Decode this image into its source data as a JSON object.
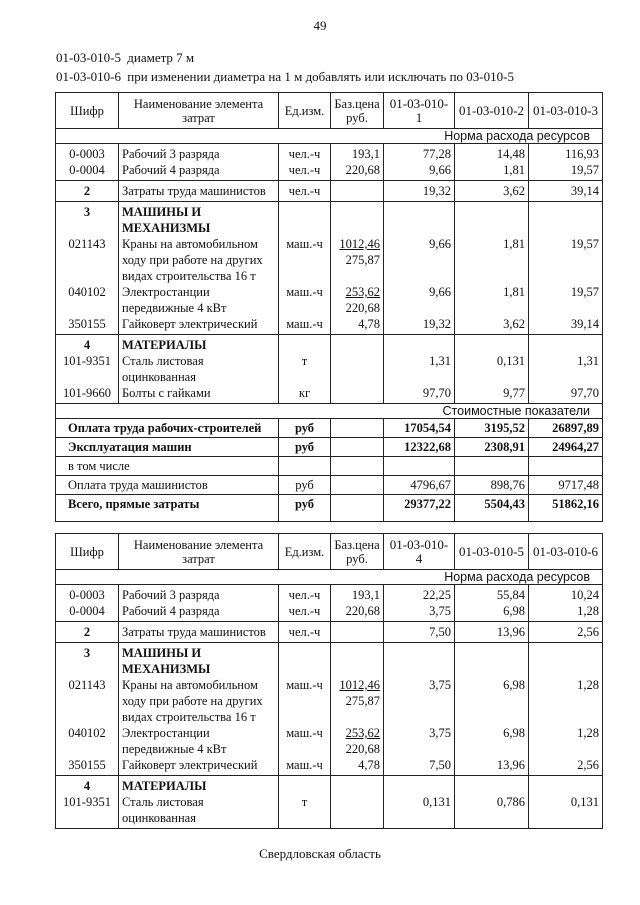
{
  "page_number": "49",
  "intro": [
    {
      "code": "01-03-010-5",
      "text": "диаметр 7 м"
    },
    {
      "code": "01-03-010-6",
      "text": "при изменении диаметра на 1 м добавлять или исключать по 03-010-5"
    }
  ],
  "headers": {
    "code": "Шифр",
    "name": "Наименование элемента затрат",
    "unit": "Ед.изм.",
    "price": "Баз.цена руб."
  },
  "norm_label": "Норма расхода ресурсов",
  "cost_label": "Стоимостные показатели",
  "tables": [
    {
      "columns": [
        "01-03-010-1",
        "01-03-010-2",
        "01-03-010-3"
      ],
      "groups": [
        {
          "rows": [
            {
              "code": "0-0003",
              "name": [
                "Рабочий 3 разряда"
              ],
              "unit": "чел.-ч",
              "price": [
                "193,1"
              ],
              "values": [
                "77,28",
                "14,48",
                "116,93"
              ]
            },
            {
              "code": "0-0004",
              "name": [
                "Рабочий 4 разряда"
              ],
              "unit": "чел.-ч",
              "price": [
                "220,68"
              ],
              "values": [
                "9,66",
                "1,81",
                "19,57"
              ]
            }
          ]
        },
        {
          "rows": [
            {
              "code": "2",
              "bold_code": true,
              "name": [
                "Затраты труда машинистов"
              ],
              "unit": "чел.-ч",
              "price": [],
              "values": [
                "19,32",
                "3,62",
                "39,14"
              ]
            }
          ]
        },
        {
          "rows": [
            {
              "code": "3",
              "bold_code": true,
              "bold_name": true,
              "name": [
                "МАШИНЫ И",
                "МЕХАНИЗМЫ"
              ],
              "unit": "",
              "price": [],
              "values": [
                "",
                "",
                ""
              ]
            },
            {
              "code": "021143",
              "name": [
                "Краны на автомобильном",
                "ходу при работе на других",
                "видах строительства 16 т"
              ],
              "unit": "маш.-ч",
              "price": [
                "1012,46",
                "275,87"
              ],
              "underline_first": true,
              "values": [
                "9,66",
                "1,81",
                "19,57"
              ]
            },
            {
              "code": "040102",
              "name": [
                "Электростанции",
                "передвижные 4 кВт"
              ],
              "unit": "маш.-ч",
              "price": [
                "253,62",
                "220,68"
              ],
              "underline_first": true,
              "values": [
                "9,66",
                "1,81",
                "19,57"
              ]
            },
            {
              "code": "350155",
              "name": [
                "Гайковерт электрический"
              ],
              "unit": "маш.-ч",
              "price": [
                "4,78"
              ],
              "values": [
                "19,32",
                "3,62",
                "39,14"
              ]
            }
          ]
        },
        {
          "rows": [
            {
              "code": "4",
              "bold_code": true,
              "bold_name": true,
              "name": [
                "МАТЕРИАЛЫ"
              ],
              "unit": "",
              "price": [],
              "values": [
                "",
                "",
                ""
              ]
            },
            {
              "code": "101-9351",
              "name": [
                "Сталь листовая",
                "оцинкованная"
              ],
              "unit": "т",
              "price": [],
              "values": [
                "1,31",
                "0,131",
                "1,31"
              ]
            },
            {
              "code": "101-9660",
              "name": [
                "Болты с гайками"
              ],
              "unit": "кг",
              "price": [],
              "values": [
                "97,70",
                "9,77",
                "97,70"
              ]
            }
          ]
        }
      ],
      "costs": [
        {
          "label": "Оплата труда рабочих-строителей",
          "bold": true,
          "unit": "руб",
          "values": [
            "17054,54",
            "3195,52",
            "26897,89"
          ]
        },
        {
          "label": "Эксплуатация машин",
          "bold": true,
          "unit": "руб",
          "values": [
            "12322,68",
            "2308,91",
            "24964,27"
          ]
        },
        {
          "label": "в том числе",
          "bold": false,
          "unit": "",
          "values": [
            "",
            "",
            ""
          ]
        },
        {
          "label": "Оплата труда машинистов",
          "bold": false,
          "unit": "руб",
          "values": [
            "4796,67",
            "898,76",
            "9717,48"
          ]
        },
        {
          "label": "Всего, прямые затраты",
          "bold": true,
          "unit": "руб",
          "values": [
            "29377,22",
            "5504,43",
            "51862,16"
          ]
        }
      ]
    },
    {
      "columns": [
        "01-03-010-4",
        "01-03-010-5",
        "01-03-010-6"
      ],
      "groups": [
        {
          "rows": [
            {
              "code": "0-0003",
              "name": [
                "Рабочий 3 разряда"
              ],
              "unit": "чел.-ч",
              "price": [
                "193,1"
              ],
              "values": [
                "22,25",
                "55,84",
                "10,24"
              ]
            },
            {
              "code": "0-0004",
              "name": [
                "Рабочий 4 разряда"
              ],
              "unit": "чел.-ч",
              "price": [
                "220,68"
              ],
              "values": [
                "3,75",
                "6,98",
                "1,28"
              ]
            }
          ]
        },
        {
          "rows": [
            {
              "code": "2",
              "bold_code": true,
              "name": [
                "Затраты труда машинистов"
              ],
              "unit": "чел.-ч",
              "price": [],
              "values": [
                "7,50",
                "13,96",
                "2,56"
              ]
            }
          ]
        },
        {
          "rows": [
            {
              "code": "3",
              "bold_code": true,
              "bold_name": true,
              "name": [
                "МАШИНЫ И",
                "МЕХАНИЗМЫ"
              ],
              "unit": "",
              "price": [],
              "values": [
                "",
                "",
                ""
              ]
            },
            {
              "code": "021143",
              "name": [
                "Краны на автомобильном",
                "ходу при работе на других",
                "видах строительства 16 т"
              ],
              "unit": "маш.-ч",
              "price": [
                "1012,46",
                "275,87"
              ],
              "underline_first": true,
              "values": [
                "3,75",
                "6,98",
                "1,28"
              ]
            },
            {
              "code": "040102",
              "name": [
                "Электростанции",
                "передвижные 4 кВт"
              ],
              "unit": "маш.-ч",
              "price": [
                "253,62",
                "220,68"
              ],
              "underline_first": true,
              "values": [
                "3,75",
                "6,98",
                "1,28"
              ]
            },
            {
              "code": "350155",
              "name": [
                "Гайковерт электрический"
              ],
              "unit": "маш.-ч",
              "price": [
                "4,78"
              ],
              "values": [
                "7,50",
                "13,96",
                "2,56"
              ]
            }
          ]
        },
        {
          "rows": [
            {
              "code": "4",
              "bold_code": true,
              "bold_name": true,
              "name": [
                "МАТЕРИАЛЫ"
              ],
              "unit": "",
              "price": [],
              "values": [
                "",
                "",
                ""
              ]
            },
            {
              "code": "101-9351",
              "name": [
                "Сталь листовая",
                "оцинкованная"
              ],
              "unit": "т",
              "price": [],
              "values": [
                "0,131",
                "0,786",
                "0,131"
              ]
            }
          ]
        }
      ],
      "costs": []
    }
  ],
  "footer": "Свердловская область"
}
